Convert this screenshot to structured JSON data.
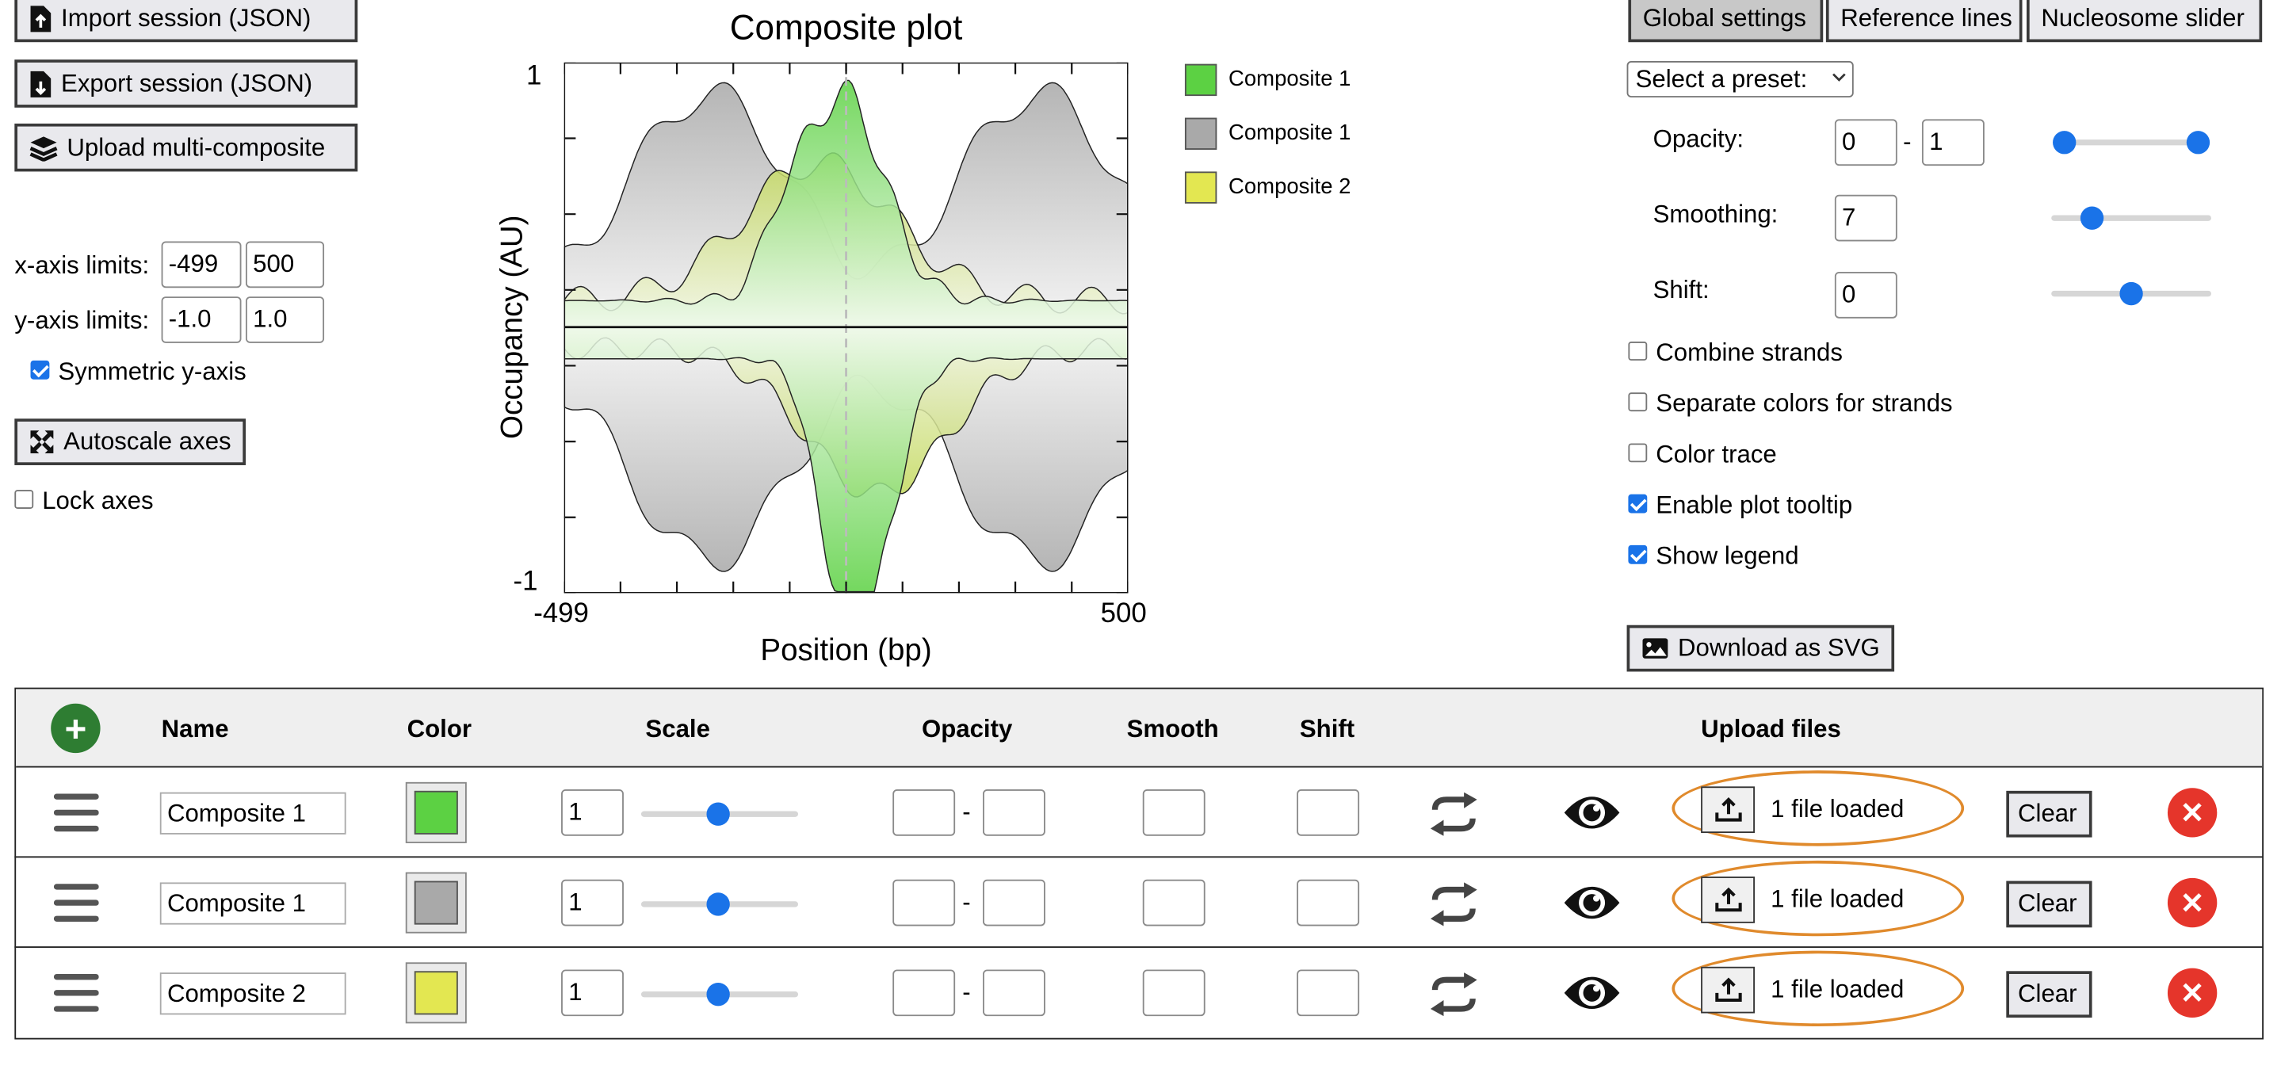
{
  "left_panel": {
    "import_label": "Import session (JSON)",
    "export_label": "Export session (JSON)",
    "upload_multi_label": "Upload multi-composite",
    "x_axis_label": "x-axis limits:",
    "x_min": "-499",
    "x_max": "500",
    "y_axis_label": "y-axis limits:",
    "y_min": "-1.0",
    "y_max": "1.0",
    "symmetric_label": "Symmetric y-axis",
    "symmetric_checked": true,
    "autoscale_label": "Autoscale axes",
    "lock_label": "Lock axes",
    "lock_checked": false
  },
  "plot": {
    "title": "Composite plot",
    "ylabel": "Occupancy (AU)",
    "xlabel": "Position (bp)",
    "y_top_tick": "1",
    "y_bottom_tick": "-1",
    "x_left_tick": "-499",
    "x_right_tick": "500",
    "legend": [
      {
        "label": "Composite 1",
        "color": "#5cd143"
      },
      {
        "label": "Composite 1",
        "color": "#a9a9a9"
      },
      {
        "label": "Composite 2",
        "color": "#e3e751"
      }
    ]
  },
  "chart_data": {
    "type": "area",
    "title": "Composite plot",
    "xlabel": "Position (bp)",
    "ylabel": "Occupancy (AU)",
    "xlim": [
      -499,
      500
    ],
    "ylim": [
      -1,
      1
    ],
    "series": [
      {
        "name": "Composite 1",
        "color": "#5cd143",
        "strand": "both",
        "description_values": "peaks near position 0, max ~0.95"
      },
      {
        "name": "Composite 1",
        "color": "#a9a9a9",
        "strand": "both",
        "description_values": "periodic oscillation ~0.4–0.95"
      },
      {
        "name": "Composite 2",
        "color": "#e3e751",
        "strand": "both",
        "description_values": "broad peak near 0, max ~0.55"
      }
    ]
  },
  "right_panel": {
    "tabs": [
      "Global settings",
      "Reference lines",
      "Nucleosome slider"
    ],
    "active_tab": 0,
    "preset_label": "Select a preset:",
    "opacity_label": "Opacity:",
    "opacity_min": "0",
    "opacity_dash": "-",
    "opacity_max": "1",
    "smoothing_label": "Smoothing:",
    "smoothing_value": "7",
    "shift_label": "Shift:",
    "shift_value": "0",
    "checkboxes": [
      {
        "label": "Combine strands",
        "checked": false
      },
      {
        "label": "Separate colors for strands",
        "checked": false
      },
      {
        "label": "Color trace",
        "checked": false
      },
      {
        "label": "Enable plot tooltip",
        "checked": true
      },
      {
        "label": "Show legend",
        "checked": true
      }
    ],
    "download_label": "Download as SVG"
  },
  "table": {
    "headers": {
      "name": "Name",
      "color": "Color",
      "scale": "Scale",
      "opacity": "Opacity",
      "smooth": "Smooth",
      "shift": "Shift",
      "upload": "Upload files"
    },
    "rows": [
      {
        "name": "Composite 1",
        "color": "#5cd143",
        "scale": "1",
        "status": "1 file loaded",
        "clear": "Clear"
      },
      {
        "name": "Composite 1",
        "color": "#a9a9a9",
        "scale": "1",
        "status": "1 file loaded",
        "clear": "Clear"
      },
      {
        "name": "Composite 2",
        "color": "#e3e751",
        "scale": "1",
        "status": "1 file loaded",
        "clear": "Clear"
      }
    ],
    "dash": "-"
  }
}
